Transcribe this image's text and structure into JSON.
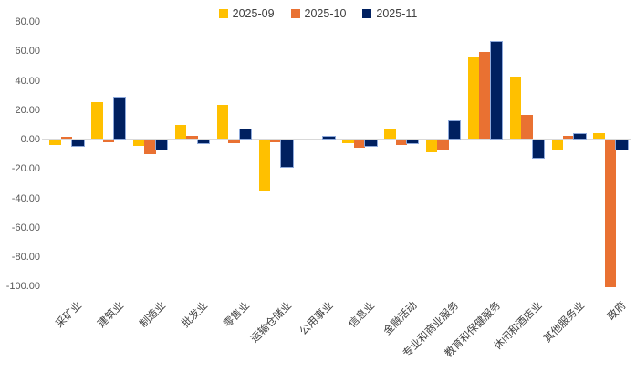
{
  "chart_data": {
    "type": "bar",
    "title": "",
    "xlabel": "",
    "ylabel": "",
    "categories": [
      "采矿业",
      "建筑业",
      "制造业",
      "批发业",
      "零售业",
      "运输仓储业",
      "公用事业",
      "信息业",
      "金融活动",
      "专业和商业服务",
      "教育和保健服务",
      "休闲和酒店业",
      "其他服务业",
      "政府"
    ],
    "series": [
      {
        "name": "2025-09",
        "color": "#FFC000",
        "values": [
          -3,
          25,
          -4,
          9,
          23,
          -34,
          0,
          -2,
          6,
          -8,
          56,
          42,
          -6,
          4
        ]
      },
      {
        "name": "2025-10",
        "color": "#E97132",
        "values": [
          1,
          -1,
          -9,
          2,
          -2,
          -1,
          0,
          -5,
          -3,
          -7,
          59,
          16,
          2,
          -100
        ]
      },
      {
        "name": "2025-11",
        "color": "#002060",
        "border": "#8EA9DB",
        "values": [
          -4,
          28,
          -6,
          -2,
          6,
          -18,
          1,
          -4,
          -2,
          12,
          66,
          -12,
          3,
          -6
        ]
      }
    ],
    "ylim": [
      -100,
      80
    ],
    "y_tick_step": 20,
    "y_tick_labels": [
      "80.00",
      "60.00",
      "40.00",
      "20.00",
      "0.00",
      "-20.00",
      "-40.00",
      "-60.00",
      "-80.00",
      "-100.00"
    ],
    "grid": "zero-line-only",
    "legend_position": "top-center",
    "colors": {
      "background": "#FFFFFF",
      "zero_line": "#D9D9D9",
      "y_tick_label": "#595959",
      "category_label": "#404040",
      "legend_text": "#404040"
    }
  }
}
